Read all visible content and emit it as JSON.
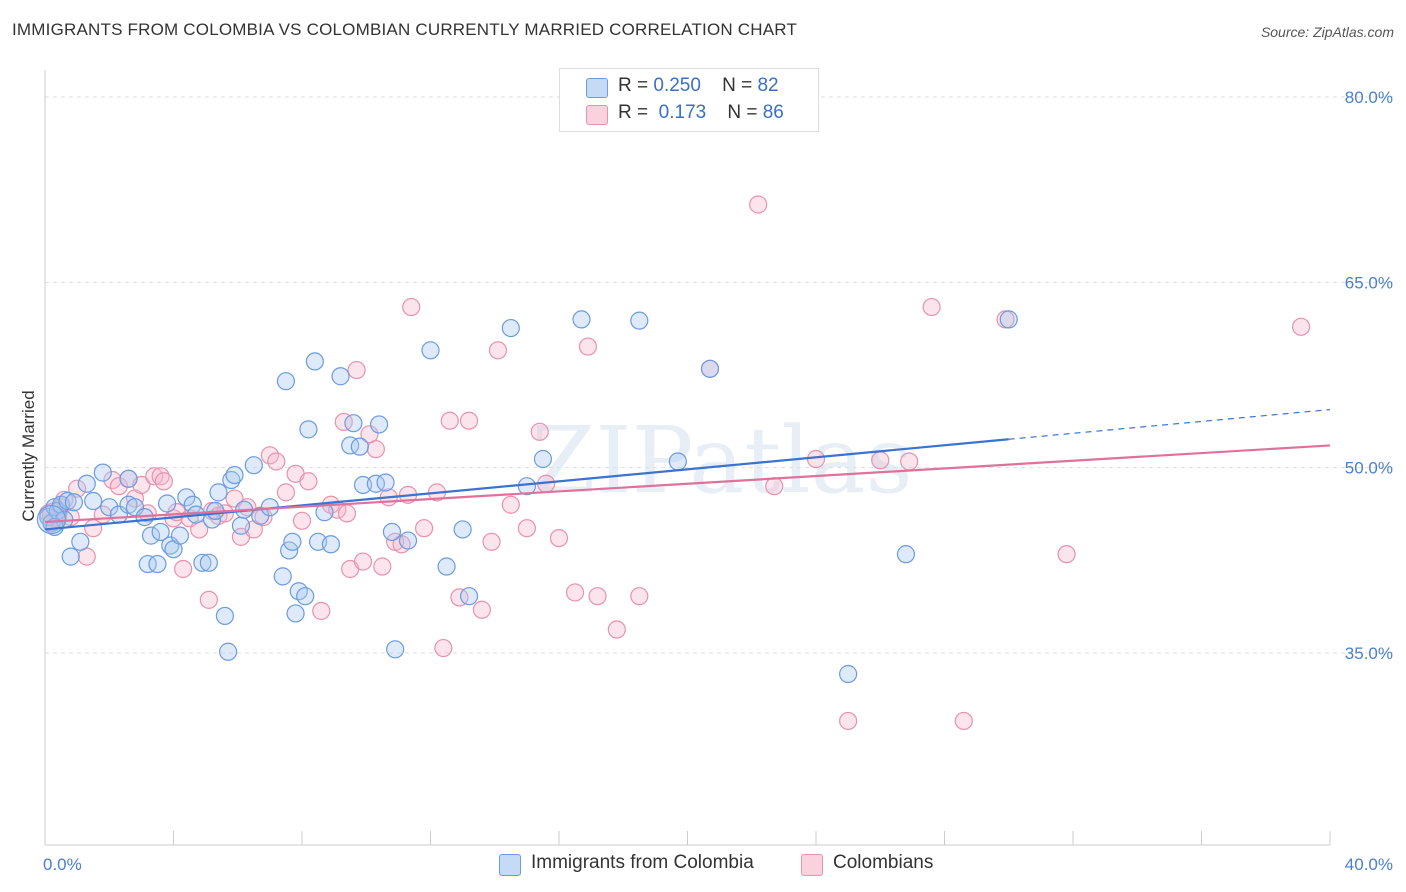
{
  "title": "IMMIGRANTS FROM COLOMBIA VS COLOMBIAN CURRENTLY MARRIED CORRELATION CHART",
  "source": "Source: ZipAtlas.com",
  "watermark": "ZIPatlas",
  "colors": {
    "blue_fill": "#a9c8f0",
    "blue_stroke": "#6b9be0",
    "blue_line": "#3a74d0",
    "pink_fill": "#f5b9cc",
    "pink_stroke": "#e892ad",
    "pink_line": "#e0719a",
    "axis_label": "#4a7fd0",
    "grid": "#dddddd"
  },
  "legend": {
    "rows": [
      {
        "r_label": "R =",
        "r_value": "0.250",
        "n_label": "N =",
        "n_value": "82"
      },
      {
        "r_label": "R =",
        "r_value": "0.173",
        "n_label": "N =",
        "n_value": "86"
      }
    ]
  },
  "bottom_legend": [
    "Immigrants from Colombia",
    "Colombians"
  ],
  "chart_data": {
    "type": "scatter",
    "title": "IMMIGRANTS FROM COLOMBIA VS COLOMBIAN CURRENTLY MARRIED CORRELATION CHART",
    "xlabel": "",
    "ylabel": "Currently Married",
    "xlim": [
      0,
      40
    ],
    "ylim": [
      20,
      82
    ],
    "x_tick_labels": [
      "0.0%",
      "40.0%"
    ],
    "y_ticks": [
      35,
      50,
      65,
      80
    ],
    "y_tick_labels": [
      "35.0%",
      "50.0%",
      "65.0%",
      "80.0%"
    ],
    "grid": true,
    "legend_position": "top-center",
    "series": [
      {
        "name": "Immigrants from Colombia",
        "color": "#6b9be0",
        "trend": {
          "x": [
            0,
            30
          ],
          "y": [
            45.0,
            52.3
          ],
          "dashed_extension_to": [
            40,
            54.7
          ]
        },
        "points": [
          [
            0.1,
            46.0
          ],
          [
            0.2,
            45.5
          ],
          [
            0.3,
            46.8
          ],
          [
            0.4,
            46.5
          ],
          [
            0.5,
            47.0
          ],
          [
            0.6,
            45.8
          ],
          [
            0.7,
            47.3
          ],
          [
            0.8,
            42.8
          ],
          [
            0.9,
            47.2
          ],
          [
            1.1,
            44.0
          ],
          [
            1.3,
            48.7
          ],
          [
            1.5,
            47.3
          ],
          [
            1.8,
            49.6
          ],
          [
            2.0,
            46.8
          ],
          [
            2.3,
            46.2
          ],
          [
            2.6,
            47.0
          ],
          [
            2.8,
            46.8
          ],
          [
            3.1,
            46.0
          ],
          [
            3.2,
            42.2
          ],
          [
            3.3,
            44.5
          ],
          [
            3.5,
            42.2
          ],
          [
            3.6,
            44.8
          ],
          [
            3.9,
            43.7
          ],
          [
            4.0,
            43.4
          ],
          [
            4.2,
            44.5
          ],
          [
            4.4,
            47.6
          ],
          [
            4.6,
            47.0
          ],
          [
            4.7,
            46.2
          ],
          [
            4.9,
            42.3
          ],
          [
            5.1,
            42.3
          ],
          [
            5.2,
            45.8
          ],
          [
            5.3,
            46.5
          ],
          [
            5.4,
            48.0
          ],
          [
            5.7,
            35.1
          ],
          [
            5.8,
            49.0
          ],
          [
            5.9,
            49.4
          ],
          [
            6.1,
            45.3
          ],
          [
            6.2,
            46.6
          ],
          [
            6.5,
            50.2
          ],
          [
            6.7,
            46.1
          ],
          [
            7.0,
            46.8
          ],
          [
            7.4,
            41.2
          ],
          [
            7.5,
            57.0
          ],
          [
            7.6,
            43.3
          ],
          [
            7.8,
            38.2
          ],
          [
            7.9,
            40.0
          ],
          [
            8.1,
            39.6
          ],
          [
            8.2,
            53.1
          ],
          [
            8.4,
            58.6
          ],
          [
            8.5,
            44.0
          ],
          [
            8.7,
            46.4
          ],
          [
            8.9,
            43.8
          ],
          [
            9.2,
            57.4
          ],
          [
            9.5,
            51.8
          ],
          [
            9.6,
            53.6
          ],
          [
            9.8,
            51.7
          ],
          [
            9.9,
            48.6
          ],
          [
            10.3,
            48.7
          ],
          [
            10.4,
            53.5
          ],
          [
            10.6,
            48.8
          ],
          [
            10.8,
            44.8
          ],
          [
            10.9,
            35.3
          ],
          [
            11.3,
            44.1
          ],
          [
            12.0,
            59.5
          ],
          [
            12.5,
            42.0
          ],
          [
            13.0,
            45.0
          ],
          [
            13.2,
            39.6
          ],
          [
            14.5,
            61.3
          ],
          [
            15.0,
            48.5
          ],
          [
            15.5,
            50.7
          ],
          [
            16.7,
            62.0
          ],
          [
            20.7,
            58.0
          ],
          [
            18.5,
            61.9
          ],
          [
            19.7,
            50.5
          ],
          [
            25.0,
            33.3
          ],
          [
            26.8,
            43.0
          ],
          [
            30.0,
            62.0
          ],
          [
            7.7,
            44.0
          ],
          [
            3.8,
            47.1
          ],
          [
            2.6,
            49.1
          ],
          [
            0.3,
            45.2
          ],
          [
            5.6,
            38.0
          ]
        ]
      },
      {
        "name": "Colombians",
        "color": "#e892ad",
        "trend": {
          "x": [
            0,
            40
          ],
          "y": [
            45.6,
            51.8
          ]
        },
        "points": [
          [
            0.1,
            46.3
          ],
          [
            0.2,
            45.6
          ],
          [
            0.4,
            45.9
          ],
          [
            0.5,
            46.8
          ],
          [
            0.6,
            47.4
          ],
          [
            0.8,
            46.0
          ],
          [
            1.0,
            48.3
          ],
          [
            1.3,
            42.8
          ],
          [
            1.5,
            45.1
          ],
          [
            1.8,
            46.2
          ],
          [
            2.1,
            49.0
          ],
          [
            2.3,
            48.5
          ],
          [
            2.6,
            49.1
          ],
          [
            2.8,
            47.5
          ],
          [
            3.0,
            48.6
          ],
          [
            3.2,
            46.3
          ],
          [
            3.4,
            49.3
          ],
          [
            3.6,
            49.3
          ],
          [
            3.7,
            48.9
          ],
          [
            4.0,
            45.9
          ],
          [
            4.1,
            46.4
          ],
          [
            4.3,
            41.8
          ],
          [
            4.5,
            45.9
          ],
          [
            4.8,
            45.0
          ],
          [
            5.1,
            39.3
          ],
          [
            5.2,
            46.5
          ],
          [
            5.4,
            46.1
          ],
          [
            5.6,
            46.3
          ],
          [
            5.9,
            47.5
          ],
          [
            6.1,
            44.4
          ],
          [
            6.3,
            46.8
          ],
          [
            6.5,
            45.0
          ],
          [
            6.8,
            46.0
          ],
          [
            7.0,
            51.0
          ],
          [
            7.2,
            50.5
          ],
          [
            7.5,
            48.0
          ],
          [
            7.8,
            49.5
          ],
          [
            8.0,
            45.7
          ],
          [
            8.2,
            48.9
          ],
          [
            8.6,
            38.4
          ],
          [
            8.9,
            47.0
          ],
          [
            9.1,
            46.6
          ],
          [
            9.3,
            53.7
          ],
          [
            9.5,
            41.8
          ],
          [
            9.7,
            57.9
          ],
          [
            9.9,
            42.4
          ],
          [
            10.1,
            52.7
          ],
          [
            10.3,
            51.5
          ],
          [
            10.5,
            42.0
          ],
          [
            10.7,
            47.6
          ],
          [
            10.9,
            44.0
          ],
          [
            11.1,
            43.8
          ],
          [
            11.3,
            47.8
          ],
          [
            11.4,
            63.0
          ],
          [
            11.8,
            45.1
          ],
          [
            12.2,
            48.0
          ],
          [
            12.4,
            35.4
          ],
          [
            12.6,
            53.8
          ],
          [
            12.9,
            39.5
          ],
          [
            13.2,
            53.8
          ],
          [
            13.6,
            38.5
          ],
          [
            13.9,
            44.0
          ],
          [
            14.1,
            59.5
          ],
          [
            14.5,
            47.0
          ],
          [
            15.0,
            45.1
          ],
          [
            15.4,
            52.9
          ],
          [
            15.6,
            48.7
          ],
          [
            16.0,
            44.3
          ],
          [
            16.5,
            39.9
          ],
          [
            16.9,
            59.8
          ],
          [
            17.2,
            39.6
          ],
          [
            17.8,
            36.9
          ],
          [
            18.5,
            39.6
          ],
          [
            22.2,
            71.3
          ],
          [
            22.7,
            48.5
          ],
          [
            24.0,
            50.7
          ],
          [
            25.0,
            29.5
          ],
          [
            26.0,
            50.6
          ],
          [
            26.9,
            50.5
          ],
          [
            27.6,
            63.0
          ],
          [
            28.6,
            29.5
          ],
          [
            29.9,
            62.0
          ],
          [
            31.8,
            43.0
          ],
          [
            39.1,
            61.4
          ],
          [
            20.7,
            58.0
          ],
          [
            9.4,
            46.3
          ]
        ]
      }
    ]
  }
}
